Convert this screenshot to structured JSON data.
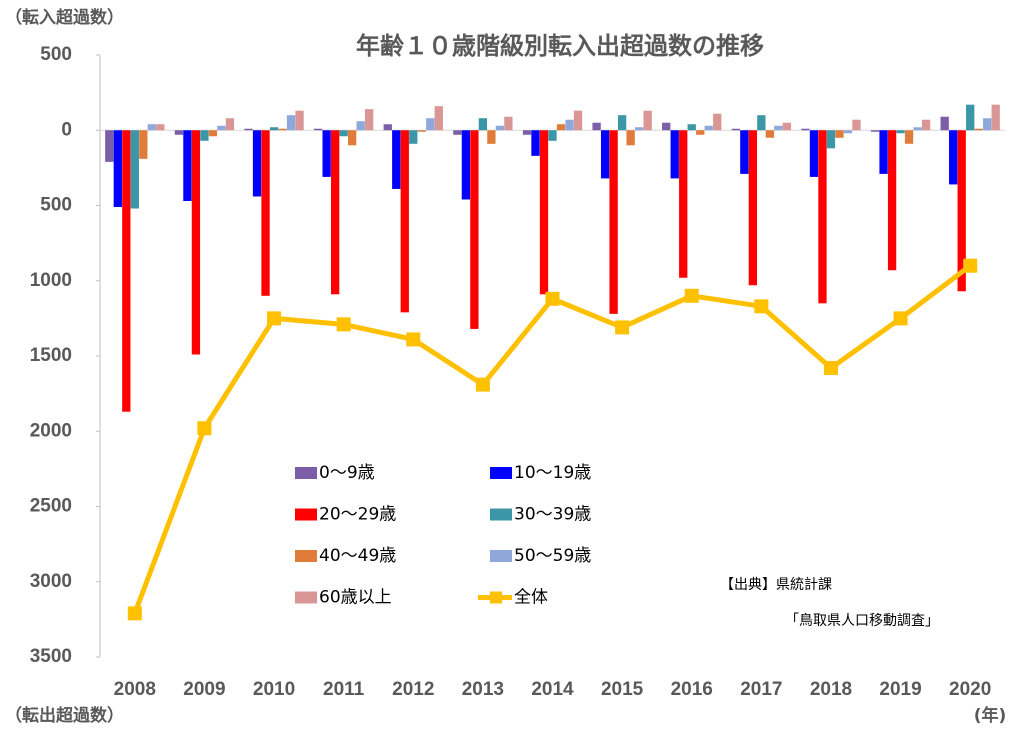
{
  "chart_data": {
    "type": "bar",
    "title": "年齢１０歳階級別転入出超過数の推移",
    "y_label_top": "（転入超過数）",
    "y_label_bottom": "（転出超過数）",
    "x_label": "(年)",
    "source": [
      "【出典】県統計課",
      "「鳥取県人口移動調査」"
    ],
    "categories": [
      "2008",
      "2009",
      "2010",
      "2011",
      "2012",
      "2013",
      "2014",
      "2015",
      "2016",
      "2017",
      "2018",
      "2019",
      "2020"
    ],
    "ylim": [
      -3500,
      500
    ],
    "yticks": [
      {
        "value": 500,
        "label": "500"
      },
      0,
      {
        "value": -500,
        "label": "500"
      },
      {
        "value": -1000,
        "label": "1000"
      },
      {
        "value": -1500,
        "label": "1500"
      },
      {
        "value": -2000,
        "label": "2000"
      },
      {
        "value": -2500,
        "label": "2500"
      },
      {
        "value": -3000,
        "label": "3000"
      },
      {
        "value": -3500,
        "label": "3500"
      }
    ],
    "series": [
      {
        "name": "0～9歳",
        "color": "#7b5ea7",
        "values": [
          -210,
          -30,
          10,
          10,
          40,
          -30,
          -30,
          50,
          50,
          10,
          10,
          -10,
          90
        ]
      },
      {
        "name": "10～19歳",
        "color": "#0000ff",
        "values": [
          -510,
          -470,
          -440,
          -310,
          -390,
          -460,
          -170,
          -320,
          -320,
          -290,
          -310,
          -290,
          -360
        ]
      },
      {
        "name": "20～29歳",
        "color": "#ff0000",
        "values": [
          -1870,
          -1490,
          -1100,
          -1090,
          -1210,
          -1320,
          -1090,
          -1220,
          -980,
          -1030,
          -1150,
          -930,
          -1070
        ]
      },
      {
        "name": "30～39歳",
        "color": "#3b96a8",
        "values": [
          -520,
          -70,
          20,
          -40,
          -90,
          80,
          -70,
          100,
          40,
          100,
          -120,
          -20,
          170
        ]
      },
      {
        "name": "40～49歳",
        "color": "#e07b39",
        "values": [
          -190,
          -40,
          10,
          -100,
          -10,
          -90,
          40,
          -100,
          -30,
          -50,
          -50,
          -90,
          10
        ]
      },
      {
        "name": "50～59歳",
        "color": "#8fa8dc",
        "values": [
          40,
          30,
          100,
          60,
          80,
          30,
          70,
          20,
          30,
          30,
          -20,
          20,
          80
        ]
      },
      {
        "name": "60歳以上",
        "color": "#d99694",
        "values": [
          40,
          80,
          130,
          140,
          160,
          90,
          130,
          130,
          110,
          50,
          70,
          70,
          170
        ]
      },
      {
        "name": "全体",
        "type": "line",
        "color": "#ffc000",
        "values": [
          -3210,
          -1980,
          -1250,
          -1290,
          -1390,
          -1690,
          -1120,
          -1310,
          -1100,
          -1170,
          -1580,
          -1250,
          -900
        ]
      }
    ]
  }
}
